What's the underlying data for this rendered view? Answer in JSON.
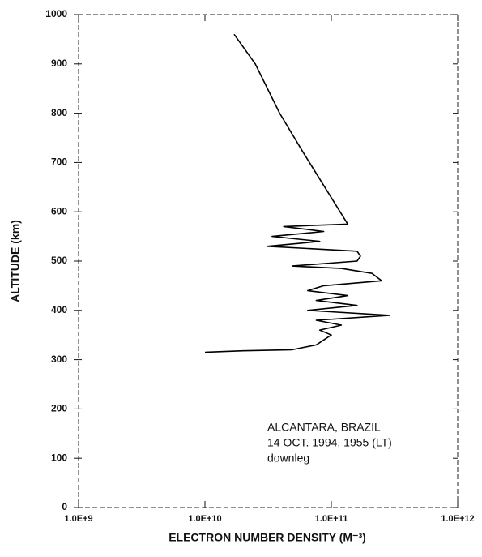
{
  "chart_data": {
    "type": "line",
    "xlabel": "ELECTRON NUMBER DENSITY (M⁻³)",
    "ylabel": "ALTITUDE (km)",
    "annotation": [
      "ALCANTARA, BRAZIL",
      "14 OCT. 1994, 1955 (LT)",
      "downleg"
    ],
    "xscale": "log",
    "xlim": [
      1000000000,
      1000000000000
    ],
    "ylim": [
      0,
      1000
    ],
    "xticks": [
      {
        "value": 1000000000,
        "label": "1.0E+9"
      },
      {
        "value": 10000000000,
        "label": "1.0E+10"
      },
      {
        "value": 100000000000,
        "label": "1.0E+11"
      },
      {
        "value": 1000000000000,
        "label": "1.0E+12"
      }
    ],
    "yticks": [
      0,
      100,
      200,
      300,
      400,
      500,
      600,
      700,
      800,
      900,
      1000
    ],
    "series": [
      {
        "name": "downleg",
        "color": "#000000",
        "x": [
          17000000000,
          25000000000,
          39000000000,
          60000000000,
          135000000000,
          42000000000,
          87000000000,
          34000000000,
          81000000000,
          31000000000,
          160000000000,
          170000000000,
          160000000000,
          49000000000,
          120000000000,
          210000000000,
          250000000000,
          87000000000,
          65000000000,
          135000000000,
          76000000000,
          160000000000,
          65000000000,
          290000000000,
          76000000000,
          120000000000,
          81000000000,
          100000000000,
          87000000000,
          76000000000,
          49000000000,
          20000000000,
          10000000000
        ],
        "values": [
          960,
          900,
          800,
          720,
          575,
          570,
          560,
          550,
          540,
          530,
          520,
          510,
          500,
          490,
          485,
          475,
          460,
          450,
          440,
          430,
          420,
          410,
          400,
          390,
          380,
          370,
          360,
          350,
          340,
          330,
          320,
          318,
          315
        ]
      }
    ]
  }
}
